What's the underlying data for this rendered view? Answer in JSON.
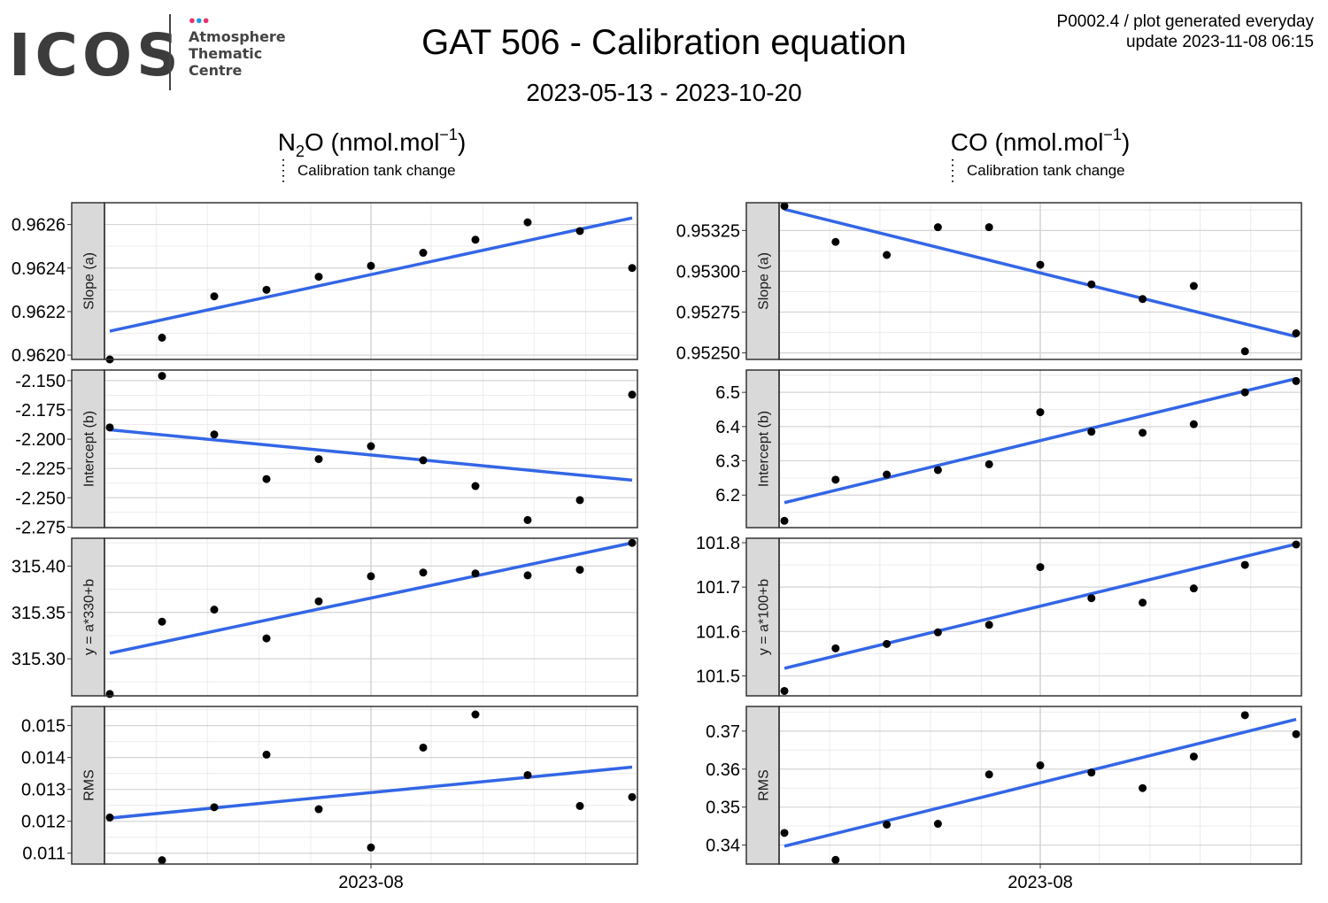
{
  "logo": {
    "text": "ICOS",
    "subtitle_lines": [
      "Atmosphere",
      "Thematic",
      "Centre"
    ],
    "dot_colors": [
      "#e6336f",
      "#1e9be0",
      "#e6336f"
    ]
  },
  "title": "GAT 506 - Calibration equation",
  "subtitle": "2023-05-13 - 2023-10-20",
  "meta": {
    "line1": "P0002.4 / plot generated everyday",
    "line2": "update  2023-11-08 06:15"
  },
  "colors": {
    "fit_line": "#3366e6",
    "point": "#000000",
    "strip_bg": "#d9d9d9",
    "grid_major": "#d4d4d4",
    "grid_minor": "#ececec"
  },
  "chart_data": [
    {
      "type": "scatter",
      "title": "N2O (nmol.mol-1)",
      "title_species": "N",
      "title_subscript": "2",
      "title_rest": "O (nmol.mol",
      "title_superscript": "−1",
      "legend": "Calibration tank change",
      "x_tick_label": "2023-08",
      "panels": [
        {
          "ylabel": "Slope (a)",
          "ylim": [
            0.96198,
            0.9627
          ],
          "yticks": [
            0.962,
            0.9622,
            0.9624,
            0.9626
          ],
          "ytick_labels": [
            "0.9620",
            "0.9622",
            "0.9624",
            "0.9626"
          ],
          "points": [
            0.96198,
            0.96208,
            0.96227,
            0.9623,
            0.96236,
            0.96241,
            0.96247,
            0.96253,
            0.96261,
            0.96257,
            0.9624
          ],
          "fit": [
            0.96211,
            0.96263
          ]
        },
        {
          "ylabel": "Intercept (b)",
          "ylim": [
            -2.2755,
            -2.141
          ],
          "yticks": [
            -2.275,
            -2.25,
            -2.225,
            -2.2,
            -2.175,
            -2.15
          ],
          "ytick_labels": [
            "-2.275",
            "-2.250",
            "-2.225",
            "-2.200",
            "-2.175",
            "-2.150"
          ],
          "points": [
            -2.19,
            -2.146,
            -2.196,
            -2.234,
            -2.217,
            -2.206,
            -2.218,
            -2.24,
            -2.269,
            -2.252,
            -2.162
          ],
          "fit": [
            -2.192,
            -2.235
          ]
        },
        {
          "ylabel": "y = a*330+b",
          "ylim": [
            315.26,
            315.43
          ],
          "yticks": [
            315.3,
            315.35,
            315.4
          ],
          "ytick_labels": [
            "315.30",
            "315.35",
            "315.40"
          ],
          "points": [
            315.262,
            315.34,
            315.353,
            315.322,
            315.362,
            315.389,
            315.393,
            315.392,
            315.39,
            315.396,
            315.425
          ],
          "fit": [
            315.306,
            315.425
          ]
        },
        {
          "ylabel": "RMS",
          "ylim": [
            0.01066,
            0.0156
          ],
          "yticks": [
            0.011,
            0.012,
            0.013,
            0.014,
            0.015
          ],
          "ytick_labels": [
            "0.011",
            "0.012",
            "0.013",
            "0.014",
            "0.015"
          ],
          "points": [
            0.01212,
            0.01078,
            0.01244,
            0.01409,
            0.01238,
            0.01118,
            0.01431,
            0.01535,
            0.01345,
            0.01248,
            0.01276
          ],
          "fit": [
            0.0121,
            0.0137
          ]
        }
      ]
    },
    {
      "type": "scatter",
      "title": "CO (nmol.mol-1)",
      "title_species": "CO",
      "title_subscript": "",
      "title_rest": " (nmol.mol",
      "title_superscript": "−1",
      "legend": "Calibration tank change",
      "x_tick_label": "2023-08",
      "panels": [
        {
          "ylabel": "Slope (a)",
          "ylim": [
            0.95246,
            0.95342
          ],
          "yticks": [
            0.9525,
            0.95275,
            0.953,
            0.95325
          ],
          "ytick_labels": [
            "0.95250",
            "0.95275",
            "0.95300",
            "0.95325"
          ],
          "points": [
            0.9534,
            0.95318,
            0.9531,
            0.95327,
            0.95327,
            0.95304,
            0.95292,
            0.95283,
            0.95291,
            0.95251,
            0.95262
          ],
          "fit": [
            0.95338,
            0.9526
          ]
        },
        {
          "ylabel": "Intercept (b)",
          "ylim": [
            6.105,
            6.565
          ],
          "yticks": [
            6.2,
            6.3,
            6.4,
            6.5
          ],
          "ytick_labels": [
            "6.2",
            "6.3",
            "6.4",
            "6.5"
          ],
          "points": [
            6.125,
            6.245,
            6.26,
            6.273,
            6.29,
            6.442,
            6.385,
            6.382,
            6.407,
            6.5,
            6.533
          ],
          "fit": [
            6.178,
            6.54
          ]
        },
        {
          "ylabel": "y = a*100+b",
          "ylim": [
            101.455,
            101.81
          ],
          "yticks": [
            101.5,
            101.6,
            101.7,
            101.8
          ],
          "ytick_labels": [
            "101.5",
            "101.6",
            "101.7",
            "101.8"
          ],
          "points": [
            101.466,
            101.562,
            101.572,
            101.598,
            101.615,
            101.745,
            101.675,
            101.665,
            101.697,
            101.75,
            101.796
          ],
          "fit": [
            101.517,
            101.797
          ]
        },
        {
          "ylabel": "RMS",
          "ylim": [
            0.335,
            0.3765
          ],
          "yticks": [
            0.34,
            0.35,
            0.36,
            0.37
          ],
          "ytick_labels": [
            "0.34",
            "0.35",
            "0.36",
            "0.37"
          ],
          "points": [
            0.3432,
            0.3361,
            0.3454,
            0.3456,
            0.3586,
            0.361,
            0.3591,
            0.355,
            0.3633,
            0.3742,
            0.3692
          ],
          "fit": [
            0.3397,
            0.3731
          ]
        }
      ]
    }
  ]
}
